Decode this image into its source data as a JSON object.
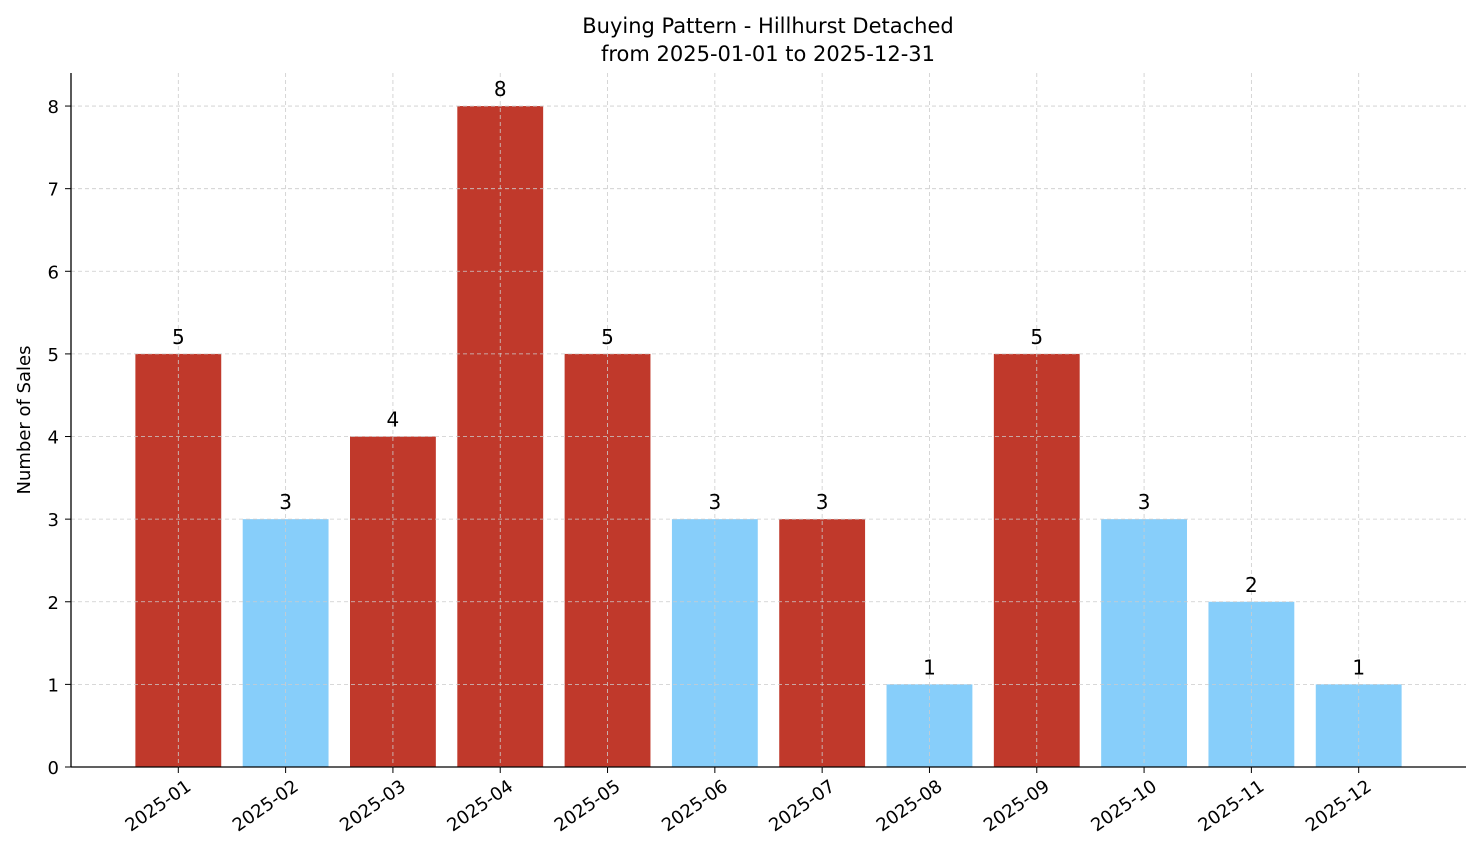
{
  "chart_data": {
    "type": "bar",
    "title": "Buying Pattern - Hillhurst Detached",
    "subtitle": "from 2025-01-01 to 2025-12-31",
    "xlabel": "",
    "ylabel": "Number of Sales",
    "categories": [
      "2025-01",
      "2025-02",
      "2025-03",
      "2025-04",
      "2025-05",
      "2025-06",
      "2025-07",
      "2025-08",
      "2025-09",
      "2025-10",
      "2025-11",
      "2025-12"
    ],
    "values": [
      5,
      3,
      4,
      8,
      5,
      3,
      3,
      1,
      5,
      3,
      2,
      1
    ],
    "bar_colors": [
      "#c0392b",
      "#87cefa",
      "#c0392b",
      "#c0392b",
      "#c0392b",
      "#87cefa",
      "#c0392b",
      "#87cefa",
      "#c0392b",
      "#87cefa",
      "#87cefa",
      "#87cefa"
    ],
    "data_labels": [
      "5",
      "3",
      "4",
      "8",
      "5",
      "3",
      "3",
      "1",
      "5",
      "3",
      "2",
      "1"
    ],
    "yticks": [
      0,
      1,
      2,
      3,
      4,
      5,
      6,
      7,
      8
    ],
    "ylim": [
      0,
      8.4
    ],
    "grid": true,
    "legend": "none"
  }
}
